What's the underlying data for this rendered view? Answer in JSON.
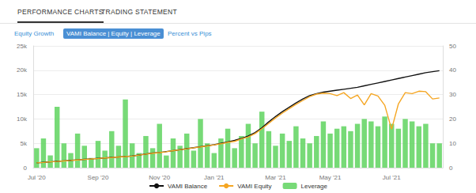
{
  "header": {
    "tabs": [
      "PERFORMANCE CHARTS",
      "TRADING STATEMENT"
    ],
    "buttons": [
      "Equity Growth",
      "VAMI Balance | Equity | Leverage",
      "Percent vs Pips"
    ]
  },
  "chart_data": {
    "type": "line",
    "categories": [
      "Jul '20",
      null,
      null,
      null,
      null,
      null,
      null,
      null,
      null,
      "Sep '20",
      null,
      null,
      null,
      null,
      null,
      null,
      null,
      null,
      "Nov '20",
      null,
      null,
      null,
      null,
      null,
      null,
      null,
      "Jan '21",
      null,
      null,
      null,
      null,
      null,
      null,
      null,
      null,
      "Mar '21",
      null,
      null,
      null,
      null,
      null,
      null,
      null,
      "May '21",
      null,
      null,
      null,
      null,
      null,
      null,
      null,
      null,
      "Jul '21",
      null,
      null,
      null,
      null,
      null,
      null,
      null
    ],
    "series": [
      {
        "name": "VAMI Balance",
        "type": "line",
        "color": "#111111",
        "values": [
          1000,
          1100,
          1200,
          1300,
          1400,
          1500,
          1600,
          1700,
          1800,
          1900,
          2000,
          2100,
          2200,
          2300,
          2400,
          2600,
          2800,
          3000,
          3100,
          3300,
          3500,
          3700,
          3900,
          4100,
          4300,
          4500,
          4700,
          5000,
          5300,
          5600,
          6000,
          6500,
          7200,
          8200,
          9400,
          10500,
          11500,
          12400,
          13300,
          14100,
          14800,
          15200,
          15500,
          15700,
          15900,
          16100,
          16300,
          16500,
          16800,
          17100,
          17400,
          17700,
          18000,
          18300,
          18600,
          18900,
          19200,
          19500,
          19700,
          19900
        ]
      },
      {
        "name": "VAMI Equity",
        "type": "line",
        "color": "#f5a623",
        "values": [
          1000,
          1080,
          1190,
          1280,
          1390,
          1480,
          1590,
          1690,
          1780,
          1880,
          1990,
          2080,
          2190,
          2280,
          2380,
          2580,
          2780,
          2970,
          3080,
          3270,
          3480,
          3670,
          3870,
          4080,
          4270,
          4470,
          4680,
          4900,
          5200,
          5400,
          5900,
          6300,
          7000,
          8000,
          9100,
          10200,
          11200,
          12100,
          13000,
          13800,
          14600,
          15100,
          15300,
          15200,
          14800,
          15400,
          14200,
          14900,
          12900,
          15200,
          14700,
          12800,
          7900,
          13100,
          15400,
          15200,
          15700,
          15600,
          14100,
          14300
        ]
      },
      {
        "name": "Leverage",
        "type": "bar",
        "axis": "y2",
        "color": "#5fd35f",
        "values": [
          8,
          12,
          5,
          25,
          10,
          6,
          14,
          9,
          4,
          11,
          7,
          15,
          9,
          28,
          10,
          6,
          13,
          8,
          18,
          5,
          12,
          9,
          14,
          7,
          20,
          10,
          6,
          12,
          16,
          8,
          13,
          18,
          10,
          23,
          15,
          9,
          14,
          11,
          17,
          12,
          10,
          13,
          19,
          14,
          16,
          17,
          15,
          18,
          20,
          19,
          17,
          21,
          18,
          16,
          20,
          19,
          17,
          18,
          10,
          10
        ]
      }
    ],
    "ylim": [
      0,
      25000
    ],
    "yticks": [
      0,
      {
        "value": 5000,
        "label": "5k"
      },
      {
        "value": 10000,
        "label": "10k"
      },
      {
        "value": 15000,
        "label": "15k"
      },
      {
        "value": 20000,
        "label": "20k"
      },
      {
        "value": 25000,
        "label": "25k"
      }
    ],
    "y2lim": [
      0,
      50
    ],
    "y2ticks": [
      0,
      10,
      20,
      30,
      40,
      50
    ],
    "grid": true,
    "legend": "bottom"
  }
}
